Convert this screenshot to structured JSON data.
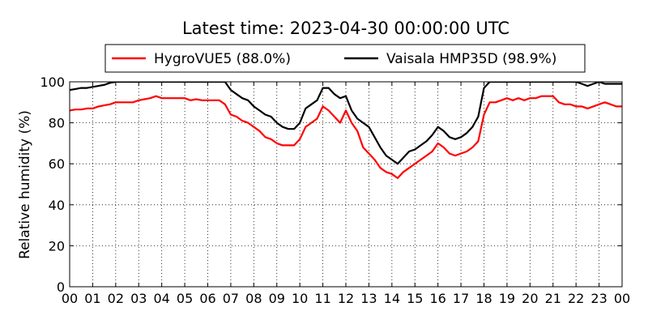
{
  "chart_data": {
    "type": "line",
    "title": "Latest time: 2023-04-30 00:00:00 UTC",
    "xlabel": "",
    "ylabel": "Relative humidity (%)",
    "xlim": [
      0,
      24
    ],
    "ylim": [
      0,
      100
    ],
    "x_tick_labels": [
      "00",
      "01",
      "02",
      "03",
      "04",
      "05",
      "06",
      "07",
      "08",
      "09",
      "10",
      "11",
      "12",
      "13",
      "14",
      "15",
      "16",
      "17",
      "18",
      "19",
      "20",
      "21",
      "22",
      "23",
      "00"
    ],
    "y_ticks": [
      0,
      20,
      40,
      60,
      80,
      100
    ],
    "grid": true,
    "legend_placement": "top-center",
    "series": [
      {
        "name": "HygroVUE5 (88.0%)",
        "color": "#ff0000",
        "x": [
          0,
          0.25,
          0.5,
          0.75,
          1,
          1.25,
          1.5,
          1.75,
          2,
          2.25,
          2.5,
          2.75,
          3,
          3.25,
          3.5,
          3.75,
          4,
          4.25,
          4.5,
          4.75,
          5,
          5.25,
          5.5,
          5.75,
          6,
          6.25,
          6.5,
          6.75,
          7,
          7.25,
          7.5,
          7.75,
          8,
          8.25,
          8.5,
          8.75,
          9,
          9.25,
          9.5,
          9.75,
          10,
          10.25,
          10.5,
          10.75,
          11,
          11.25,
          11.5,
          11.75,
          12,
          12.25,
          12.5,
          12.75,
          13,
          13.25,
          13.5,
          13.75,
          14,
          14.25,
          14.5,
          14.75,
          15,
          15.25,
          15.5,
          15.75,
          16,
          16.25,
          16.5,
          16.75,
          17,
          17.25,
          17.5,
          17.75,
          18,
          18.25,
          18.5,
          18.75,
          19,
          19.25,
          19.5,
          19.75,
          20,
          20.25,
          20.5,
          20.75,
          21,
          21.25,
          21.5,
          21.75,
          22,
          22.25,
          22.5,
          22.75,
          23,
          23.25,
          23.5,
          23.75,
          24
        ],
        "values": [
          86,
          86.5,
          86.5,
          87,
          87,
          88,
          88.5,
          89,
          90,
          90,
          90,
          90,
          91,
          91.5,
          92,
          93,
          92,
          92,
          92,
          92,
          92,
          91,
          91.5,
          91,
          91,
          91,
          91,
          89,
          84,
          83,
          81,
          80,
          78,
          76,
          73,
          72,
          70,
          69,
          69,
          69,
          72,
          78,
          80,
          82,
          88,
          86,
          83,
          80,
          86,
          80,
          76,
          68,
          65,
          62,
          58,
          56,
          55,
          53,
          56,
          58,
          60,
          62,
          64,
          66,
          70,
          68,
          65,
          64,
          65,
          66,
          68,
          71,
          84,
          90,
          90,
          91,
          92,
          91,
          92,
          91,
          92,
          92,
          93,
          93,
          93,
          90,
          89,
          89,
          88,
          88,
          87,
          88,
          89,
          90,
          89,
          88,
          88
        ],
        "latest_label": "88.0%"
      },
      {
        "name": "Vaisala HMP35D (98.9%)",
        "color": "#000000",
        "x": [
          0,
          0.25,
          0.5,
          0.75,
          1,
          1.25,
          1.5,
          1.75,
          2,
          2.25,
          2.5,
          2.75,
          3,
          3.25,
          3.5,
          3.75,
          4,
          4.25,
          4.5,
          4.75,
          5,
          5.25,
          5.5,
          5.75,
          6,
          6.25,
          6.5,
          6.75,
          7,
          7.25,
          7.5,
          7.75,
          8,
          8.25,
          8.5,
          8.75,
          9,
          9.25,
          9.5,
          9.75,
          10,
          10.25,
          10.5,
          10.75,
          11,
          11.25,
          11.5,
          11.75,
          12,
          12.25,
          12.5,
          12.75,
          13,
          13.25,
          13.5,
          13.75,
          14,
          14.25,
          14.5,
          14.75,
          15,
          15.25,
          15.5,
          15.75,
          16,
          16.25,
          16.5,
          16.75,
          17,
          17.25,
          17.5,
          17.75,
          18,
          18.25,
          18.5,
          18.75,
          19,
          19.25,
          19.5,
          19.75,
          20,
          20.25,
          20.5,
          20.75,
          21,
          21.25,
          21.5,
          21.75,
          22,
          22.25,
          22.5,
          22.75,
          23,
          23.25,
          23.5,
          23.75,
          24
        ],
        "values": [
          96,
          96.5,
          97,
          97,
          97.5,
          98,
          98.5,
          99.5,
          100,
          100,
          100,
          100,
          100,
          100,
          100,
          100,
          100,
          100,
          100,
          100,
          100,
          100,
          100,
          100,
          100,
          100,
          100,
          100,
          96,
          94,
          92,
          91,
          88,
          86,
          84,
          83,
          80,
          78,
          77,
          77,
          80,
          87,
          89,
          91,
          97,
          97,
          94,
          92,
          93,
          86,
          82,
          80,
          78,
          73,
          68,
          64,
          62,
          60,
          63,
          66,
          67,
          69,
          71,
          74,
          78,
          76,
          73,
          72,
          73,
          75,
          78,
          83,
          97,
          100,
          100,
          100,
          100,
          100,
          100,
          100,
          100,
          100,
          100,
          100,
          100,
          100,
          100,
          100,
          100,
          99,
          98,
          99,
          100,
          99,
          99,
          99,
          99
        ],
        "latest_label": "98.9%"
      }
    ]
  }
}
